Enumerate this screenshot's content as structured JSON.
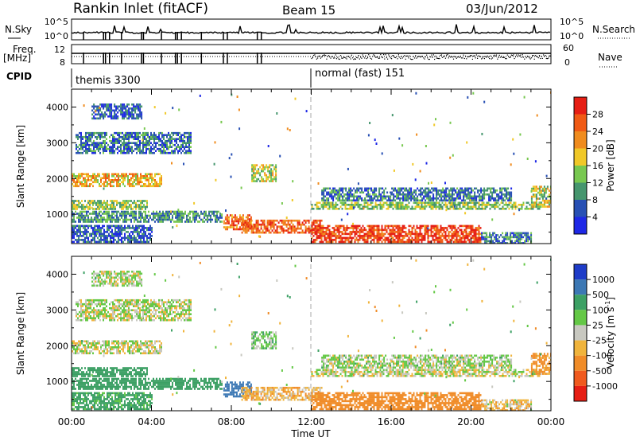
{
  "header": {
    "title": "Rankin Inlet (fitACF)",
    "beam": "Beam 15",
    "date": "03/Jun/2012"
  },
  "nsky_panel": {
    "label": "N.Sky",
    "right_label": "N.Search",
    "yticks": [
      "10^5",
      "10^0"
    ],
    "right_yticks": [
      "10^5",
      "10^0"
    ]
  },
  "freq_panel": {
    "label_line1": "Freq.",
    "label_line2": "[MHz]",
    "yticks": [
      "12",
      "8"
    ],
    "right_label": "Nave",
    "right_yticks": [
      "60",
      "0"
    ]
  },
  "cpid": {
    "label": "CPID",
    "segments": [
      {
        "start_hour": 0,
        "text": "themis 3300"
      },
      {
        "start_hour": 12,
        "text": "normal (fast) 151"
      }
    ]
  },
  "time_axis": {
    "label": "Time UT",
    "tick_labels": [
      "00:00",
      "04:00",
      "08:00",
      "12:00",
      "16:00",
      "20:00",
      "00:00"
    ],
    "tick_hours": [
      0,
      4,
      8,
      12,
      16,
      20,
      24
    ]
  },
  "range_axis": {
    "label": "Slant Range [km]",
    "tick_labels": [
      "1000",
      "2000",
      "3000",
      "4000"
    ],
    "tick_values": [
      1000,
      2000,
      3000,
      4000
    ],
    "range": [
      180,
      4500
    ]
  },
  "power_colorbar": {
    "label": "Power [dB]",
    "tick_labels": [
      "4",
      "8",
      "12",
      "16",
      "20",
      "24",
      "28"
    ],
    "colors": [
      "#1e28e6",
      "#2850b4",
      "#46966e",
      "#78c850",
      "#f0c828",
      "#f08c1e",
      "#f05a14",
      "#e61e14"
    ]
  },
  "velocity_colorbar": {
    "label": "Velocity [m s",
    "label_exp": "-1",
    "label_end": "]",
    "tick_labels": [
      "1000",
      "500",
      "100",
      "25",
      "-25",
      "-100",
      "-500",
      "-1000"
    ],
    "colors": [
      "#1e3cc8",
      "#3c78b4",
      "#3ca064",
      "#64c846",
      "#c8c8c0",
      "#f0b43c",
      "#f08c28",
      "#f05a1e",
      "#e61e14"
    ]
  },
  "chart_data": {
    "type": "heatmap",
    "x_range_hours": [
      0,
      24
    ],
    "y_range_km": [
      180,
      4500
    ],
    "regions": [
      {
        "t0": 0.0,
        "t1": 4.5,
        "r0": 1800,
        "r1": 2150,
        "power": 20,
        "velocity": 0
      },
      {
        "t0": 0.0,
        "t1": 3.8,
        "r0": 1150,
        "r1": 1400,
        "power": 14,
        "velocity": 200
      },
      {
        "t0": 0.0,
        "t1": 7.5,
        "r0": 800,
        "r1": 1100,
        "power": 10,
        "velocity": 300
      },
      {
        "t0": 0.0,
        "t1": 4.0,
        "r0": 200,
        "r1": 700,
        "power": 6,
        "velocity": 150
      },
      {
        "t0": 7.6,
        "t1": 9.0,
        "r0": 600,
        "r1": 1000,
        "power": 24,
        "velocity": 700
      },
      {
        "t0": 8.5,
        "t1": 12.5,
        "r0": 500,
        "r1": 850,
        "power": 26,
        "velocity": -60
      },
      {
        "t0": 12.0,
        "t1": 20.5,
        "r0": 250,
        "r1": 700,
        "power": 28,
        "velocity": -200
      },
      {
        "t0": 12.0,
        "t1": 23.5,
        "r0": 1180,
        "r1": 1350,
        "power": 14,
        "velocity": 0
      },
      {
        "t0": 12.5,
        "t1": 22.0,
        "r0": 1400,
        "r1": 1750,
        "power": 8,
        "velocity": 30
      },
      {
        "t0": 20.5,
        "t1": 23.0,
        "r0": 200,
        "r1": 500,
        "power": 8,
        "velocity": -50
      },
      {
        "t0": 9.0,
        "t1": 10.2,
        "r0": 1900,
        "r1": 2400,
        "power": 16,
        "velocity": 60
      },
      {
        "t0": 23.0,
        "t1": 24.0,
        "r0": 1200,
        "r1": 1800,
        "power": 16,
        "velocity": -150
      },
      {
        "t0": 0.2,
        "t1": 6.0,
        "r0": 2700,
        "r1": 3300,
        "power": 8,
        "velocity": 20
      },
      {
        "t0": 1.0,
        "t1": 3.5,
        "r0": 3700,
        "r1": 4100,
        "power": 6,
        "velocity": 20
      }
    ]
  }
}
